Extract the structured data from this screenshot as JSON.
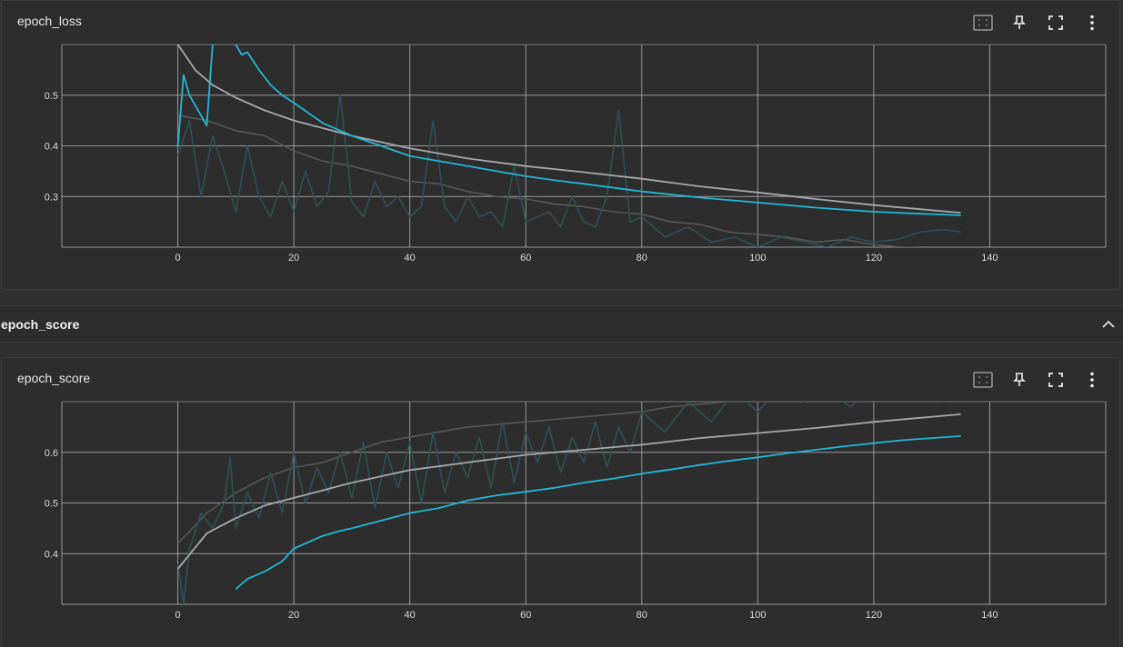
{
  "colors": {
    "background": "#303030",
    "card": "#2d2d2d",
    "grid": "#bdbdbd",
    "smoothed_run": "#22b8d6",
    "smoothed_other": "#a7a9ae",
    "raw_run": "#2f5058",
    "raw_other": "#575757"
  },
  "loss_card": {
    "title": "epoch_loss",
    "toolbar": {
      "fit_icon": "fit-domain-icon",
      "pin_icon": "pin-icon",
      "fullscreen_icon": "fullscreen-icon",
      "more_icon": "more-vert-icon"
    }
  },
  "group": {
    "title": "epoch_score",
    "collapse_icon": "chevron-up-icon"
  },
  "score_card": {
    "title": "epoch_score",
    "toolbar": {
      "fit_icon": "fit-domain-icon",
      "pin_icon": "pin-icon",
      "fullscreen_icon": "fullscreen-icon",
      "more_icon": "more-vert-icon"
    }
  },
  "chart_data": [
    {
      "type": "line",
      "title": "epoch_loss",
      "xlim": [
        -20,
        160
      ],
      "ylim": [
        0.2,
        0.6
      ],
      "x_ticks": [
        "0",
        "20",
        "40",
        "60",
        "80",
        "100",
        "120",
        "140"
      ],
      "y_ticks": [
        "0.3",
        "0.4",
        "0.5"
      ],
      "grid": true,
      "series": [
        {
          "color": "#a7a9ae",
          "role": "smoothed",
          "x": [
            0,
            3,
            6,
            10,
            15,
            20,
            25,
            30,
            40,
            50,
            60,
            70,
            80,
            90,
            100,
            110,
            120,
            128,
            135
          ],
          "y": [
            0.6,
            0.55,
            0.52,
            0.495,
            0.47,
            0.45,
            0.435,
            0.42,
            0.395,
            0.375,
            0.36,
            0.348,
            0.335,
            0.32,
            0.308,
            0.295,
            0.283,
            0.275,
            0.268
          ]
        },
        {
          "color": "#22b8d6",
          "role": "smoothed",
          "x": [
            0,
            1,
            2,
            3,
            4,
            5,
            6,
            8,
            10,
            11,
            12,
            14,
            16,
            18,
            20,
            25,
            30,
            35,
            40,
            45,
            50,
            55,
            60,
            65,
            70,
            80,
            90,
            100,
            110,
            120,
            128,
            135
          ],
          "y": [
            0.4,
            0.54,
            0.5,
            0.48,
            0.46,
            0.44,
            0.6,
            0.62,
            0.6,
            0.58,
            0.585,
            0.55,
            0.52,
            0.5,
            0.485,
            0.445,
            0.42,
            0.4,
            0.38,
            0.37,
            0.36,
            0.35,
            0.34,
            0.332,
            0.325,
            0.31,
            0.298,
            0.288,
            0.278,
            0.27,
            0.266,
            0.263
          ]
        },
        {
          "color": "#575757",
          "role": "raw",
          "x": [
            0,
            5,
            10,
            15,
            20,
            25,
            30,
            35,
            40,
            45,
            50,
            55,
            60,
            65,
            70,
            75,
            80,
            85,
            90,
            95,
            100,
            105,
            110,
            115,
            120,
            125,
            130,
            135
          ],
          "y": [
            0.46,
            0.45,
            0.43,
            0.42,
            0.39,
            0.37,
            0.36,
            0.345,
            0.33,
            0.325,
            0.31,
            0.3,
            0.295,
            0.285,
            0.28,
            0.27,
            0.265,
            0.25,
            0.245,
            0.23,
            0.225,
            0.22,
            0.21,
            0.215,
            0.205,
            0.2,
            0.198,
            0.195
          ]
        },
        {
          "color": "#2f5058",
          "role": "raw",
          "x": [
            0,
            2,
            4,
            6,
            8,
            10,
            12,
            14,
            16,
            18,
            20,
            22,
            24,
            26,
            28,
            30,
            32,
            34,
            36,
            38,
            40,
            42,
            44,
            46,
            48,
            50,
            52,
            54,
            56,
            58,
            60,
            62,
            64,
            66,
            68,
            70,
            72,
            74,
            76,
            78,
            80,
            84,
            88,
            92,
            96,
            100,
            104,
            108,
            112,
            116,
            120,
            124,
            128,
            132,
            135
          ],
          "y": [
            0.38,
            0.45,
            0.3,
            0.42,
            0.35,
            0.27,
            0.4,
            0.3,
            0.26,
            0.33,
            0.27,
            0.35,
            0.28,
            0.31,
            0.5,
            0.29,
            0.26,
            0.33,
            0.28,
            0.3,
            0.26,
            0.28,
            0.45,
            0.28,
            0.25,
            0.3,
            0.26,
            0.27,
            0.24,
            0.36,
            0.25,
            0.26,
            0.27,
            0.24,
            0.3,
            0.25,
            0.24,
            0.3,
            0.47,
            0.25,
            0.26,
            0.22,
            0.24,
            0.21,
            0.22,
            0.2,
            0.22,
            0.21,
            0.2,
            0.22,
            0.21,
            0.215,
            0.23,
            0.235,
            0.23
          ]
        }
      ]
    },
    {
      "type": "line",
      "title": "epoch_score",
      "xlim": [
        -20,
        160
      ],
      "ylim": [
        0.3,
        0.7
      ],
      "x_ticks": [
        "0",
        "20",
        "40",
        "60",
        "80",
        "100",
        "120",
        "140"
      ],
      "y_ticks": [
        "0.4",
        "0.5",
        "0.6"
      ],
      "grid": true,
      "series": [
        {
          "color": "#a7a9ae",
          "role": "smoothed",
          "x": [
            0,
            5,
            10,
            15,
            20,
            25,
            30,
            40,
            50,
            60,
            70,
            80,
            90,
            100,
            110,
            120,
            128,
            135
          ],
          "y": [
            0.37,
            0.44,
            0.47,
            0.495,
            0.51,
            0.525,
            0.54,
            0.565,
            0.58,
            0.595,
            0.605,
            0.615,
            0.628,
            0.638,
            0.648,
            0.66,
            0.668,
            0.675
          ]
        },
        {
          "color": "#22b8d6",
          "role": "smoothed",
          "x": [
            10,
            12,
            15,
            18,
            20,
            22,
            25,
            28,
            30,
            35,
            40,
            45,
            50,
            55,
            60,
            65,
            70,
            75,
            80,
            85,
            90,
            95,
            100,
            105,
            110,
            115,
            120,
            125,
            130,
            135
          ],
          "y": [
            0.33,
            0.35,
            0.365,
            0.385,
            0.41,
            0.42,
            0.435,
            0.445,
            0.45,
            0.465,
            0.48,
            0.49,
            0.505,
            0.515,
            0.522,
            0.53,
            0.54,
            0.548,
            0.558,
            0.566,
            0.575,
            0.583,
            0.59,
            0.598,
            0.605,
            0.612,
            0.618,
            0.624,
            0.628,
            0.632
          ]
        },
        {
          "color": "#575757",
          "role": "raw",
          "x": [
            0,
            5,
            10,
            15,
            20,
            25,
            30,
            35,
            40,
            45,
            50,
            55,
            60,
            65,
            70,
            75,
            80,
            85,
            90,
            95,
            100,
            105,
            110,
            115,
            120,
            125,
            130,
            135
          ],
          "y": [
            0.42,
            0.48,
            0.52,
            0.55,
            0.57,
            0.58,
            0.6,
            0.62,
            0.63,
            0.64,
            0.65,
            0.655,
            0.66,
            0.665,
            0.67,
            0.675,
            0.68,
            0.69,
            0.695,
            0.7,
            0.7,
            0.705,
            0.71,
            0.71,
            0.715,
            0.72,
            0.72,
            0.72
          ]
        },
        {
          "color": "#2f5058",
          "role": "raw",
          "x": [
            0,
            1,
            2,
            4,
            6,
            8,
            9,
            10,
            12,
            14,
            16,
            18,
            20,
            22,
            24,
            26,
            28,
            30,
            32,
            34,
            36,
            38,
            40,
            42,
            44,
            46,
            48,
            50,
            52,
            54,
            56,
            58,
            60,
            62,
            64,
            66,
            68,
            70,
            72,
            74,
            76,
            78,
            80,
            84,
            88,
            92,
            96,
            100,
            104,
            108,
            112,
            116,
            120,
            124,
            128,
            132,
            135
          ],
          "y": [
            0.38,
            0.3,
            0.41,
            0.48,
            0.45,
            0.5,
            0.59,
            0.45,
            0.52,
            0.47,
            0.56,
            0.48,
            0.6,
            0.5,
            0.57,
            0.52,
            0.6,
            0.51,
            0.62,
            0.49,
            0.6,
            0.53,
            0.62,
            0.5,
            0.64,
            0.52,
            0.6,
            0.55,
            0.63,
            0.53,
            0.66,
            0.54,
            0.64,
            0.58,
            0.65,
            0.56,
            0.63,
            0.58,
            0.66,
            0.57,
            0.65,
            0.6,
            0.68,
            0.64,
            0.7,
            0.66,
            0.72,
            0.68,
            0.73,
            0.7,
            0.72,
            0.69,
            0.73,
            0.71,
            0.72,
            0.7,
            0.71
          ]
        }
      ]
    }
  ]
}
